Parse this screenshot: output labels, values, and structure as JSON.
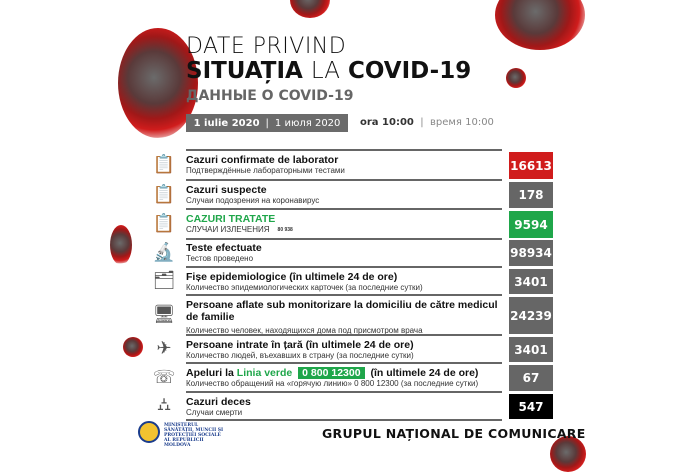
{
  "header": {
    "title_line1": "DATE PRIVIND",
    "title_line2_bold1": "SITUAȚIA",
    "title_line2_light": "LA",
    "title_line2_bold2": "COVID-19",
    "subtitle_ru": "ДАННЫЕ О COVID-19",
    "date_ro": "1 iulie 2020",
    "date_ru": "1 июля 2020",
    "separator": "|",
    "time_ro": "ora 10:00",
    "time_ru": "время 10:00"
  },
  "rows": [
    {
      "title": "Cazuri confirmate de laborator",
      "subtitle": "Подтверждённые лабораторными тестами",
      "value": "16613",
      "color": "#d01c1c",
      "icon": "clipboard-check-icon"
    },
    {
      "title": "Cazuri suspecte",
      "subtitle": "Случаи подозрения на коронавирус",
      "value": "178",
      "color": "#666666",
      "icon": "clipboard-clock-icon"
    },
    {
      "title": "CAZURI TRATATE",
      "subtitle": "СЛУЧАИ ИЗЛЕЧЕНИЯ",
      "value": "9594",
      "color": "#1fa64a",
      "icon": "clipboard-check-green-icon",
      "overlay": "80 938"
    },
    {
      "title": "Teste efectuate",
      "subtitle": "Тестов проведено",
      "value": "98934",
      "color": "#666666",
      "icon": "microscope-icon"
    },
    {
      "title": "Fișe epidemiologice (în ultimele 24 de ore)",
      "subtitle": "Количество эпидемиологических карточек (за последние сутки)",
      "value": "3401",
      "color": "#666666",
      "icon": "card-file-icon"
    },
    {
      "title": "Persoane aflate sub monitorizare la domiciliu de către medicul de familie",
      "subtitle": "Количество человек, находящихся дома под присмотром врача",
      "value": "24239",
      "color": "#666666",
      "icon": "monitor-search-icon"
    },
    {
      "title": "Persoane intrate în țară (în ultimele 24 de ore)",
      "subtitle": "Количество людей, въехавших в страну (за последние сутки)",
      "value": "3401",
      "color": "#666666",
      "icon": "plane-virus-icon"
    },
    {
      "title_pre": "Apeluri la",
      "title_green": "Linia verde",
      "phone": "0 800 12300",
      "title_post": "(în ultimele 24 de ore)",
      "subtitle": "Количество обращений на «горячую линию» 0 800 12300 (за последние сутки)",
      "value": "67",
      "color": "#666666",
      "icon": "phone-chat-icon"
    },
    {
      "title": "Cazuri deces",
      "subtitle": "Случаи смерти",
      "value": "547",
      "color": "#000000",
      "icon": "tombstone-icon"
    }
  ],
  "footer": {
    "ministry": "MINISTERUL SĂNĂTĂȚII, MUNCII ȘI PROTECȚIEI SOCIALE AL REPUBLICII MOLDOVA",
    "group": "GRUPUL NAȚIONAL DE COMUNICARE"
  }
}
